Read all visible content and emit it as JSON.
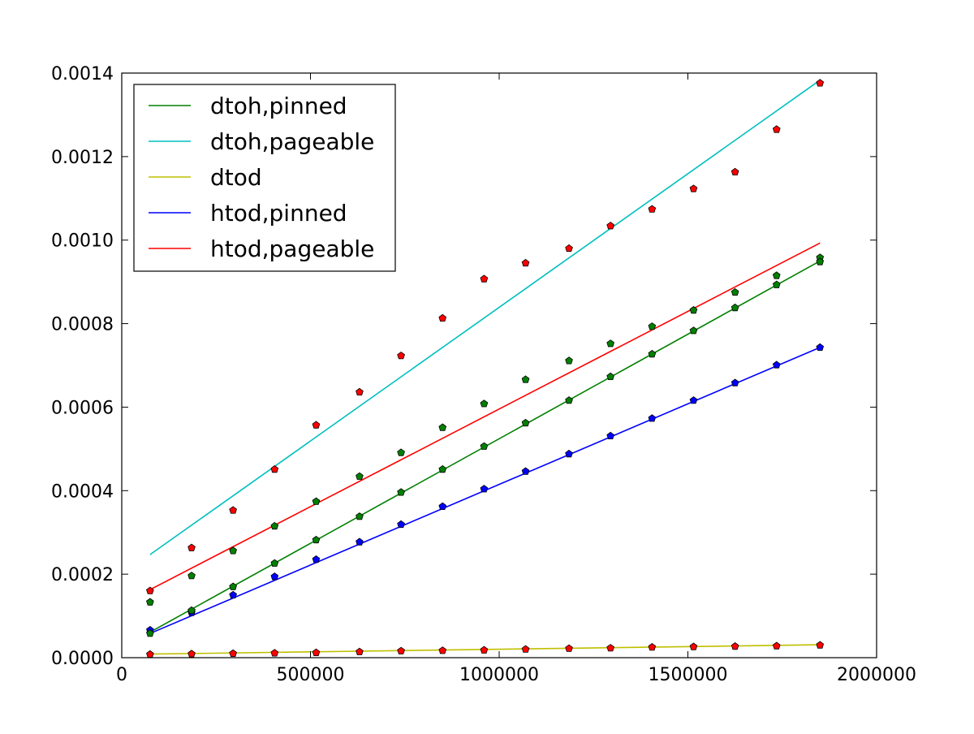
{
  "chart_data": {
    "type": "line",
    "title": "",
    "xlabel": "",
    "ylabel": "",
    "xlim": [
      0,
      2000000
    ],
    "ylim": [
      0,
      0.0014
    ],
    "xticks": [
      0,
      500000,
      1000000,
      1500000,
      2000000
    ],
    "xtick_labels": [
      "0",
      "500000",
      "1000000",
      "1500000",
      "2000000"
    ],
    "yticks": [
      0,
      0.0002,
      0.0004,
      0.0006,
      0.0008,
      0.001,
      0.0012,
      0.0014
    ],
    "ytick_labels": [
      "0.0000",
      "0.0002",
      "0.0004",
      "0.0006",
      "0.0008",
      "0.0010",
      "0.0012",
      "0.0014"
    ],
    "grid": false,
    "legend_position": "top-left",
    "x": [
      75000,
      185000,
      295000,
      405000,
      515000,
      630000,
      740000,
      850000,
      960000,
      1070000,
      1185000,
      1295000,
      1405000,
      1515000,
      1625000,
      1735000,
      1850000
    ],
    "series": [
      {
        "name": "dtoh,pinned",
        "color": "#008000",
        "marker_color": "#008000",
        "fit": [
          [
            75000,
            6.1e-05
          ],
          [
            1850000,
            0.00095
          ]
        ],
        "values": [
          0.000133,
          0.000196,
          0.000256,
          0.000315,
          0.000374,
          0.000434,
          0.000491,
          0.000551,
          0.000608,
          0.000666,
          0.000711,
          0.000752,
          0.000793,
          0.000832,
          0.000875,
          0.000915,
          0.000958
        ]
      },
      {
        "name": "dtoh,pageable",
        "color": "#00bfbf",
        "marker_color": "#ff0000",
        "fit": [
          [
            75000,
            0.000247
          ],
          [
            1850000,
            0.001383
          ]
        ],
        "values": [
          0.00016,
          0.000263,
          0.000353,
          0.000451,
          0.000557,
          0.000636,
          0.000723,
          0.000813,
          0.000907,
          0.000945,
          0.00098,
          0.001034,
          0.001074,
          0.001123,
          0.001163,
          0.001265,
          0.001376
        ]
      },
      {
        "name": "dtod",
        "color": "#bfbf00",
        "marker_color": "#ff0000",
        "fit": [
          [
            75000,
            8.5e-06
          ],
          [
            1850000,
            3.1e-05
          ]
        ],
        "values": [
          8e-06,
          9e-06,
          1e-05,
          1.1e-05,
          1.2e-05,
          1.4e-05,
          1.6e-05,
          1.7e-05,
          1.8e-05,
          2e-05,
          2.2e-05,
          2.3e-05,
          2.5e-05,
          2.6e-05,
          2.7e-05,
          2.8e-05,
          3e-05
        ]
      },
      {
        "name": "htod,pinned",
        "color": "#0000ff",
        "marker_color": "#0000ff",
        "fit": [
          [
            75000,
            5.8e-05
          ],
          [
            1850000,
            0.000743
          ]
        ],
        "values": [
          6.6e-05,
          0.000108,
          0.00015,
          0.000194,
          0.000235,
          0.000277,
          0.000319,
          0.000362,
          0.000404,
          0.000446,
          0.000488,
          0.000531,
          0.000573,
          0.000616,
          0.000658,
          0.000701,
          0.000743
        ]
      },
      {
        "name": "htod,pageable",
        "color": "#ff0000",
        "marker_color": "#008000",
        "fit": [
          [
            75000,
            0.000163
          ],
          [
            1850000,
            0.000993
          ]
        ],
        "values": [
          5.8e-05,
          0.000113,
          0.00017,
          0.000226,
          0.000282,
          0.000338,
          0.000396,
          0.000451,
          0.000506,
          0.000562,
          0.000616,
          0.000673,
          0.000727,
          0.000783,
          0.000838,
          0.000893,
          0.000948
        ]
      }
    ]
  }
}
